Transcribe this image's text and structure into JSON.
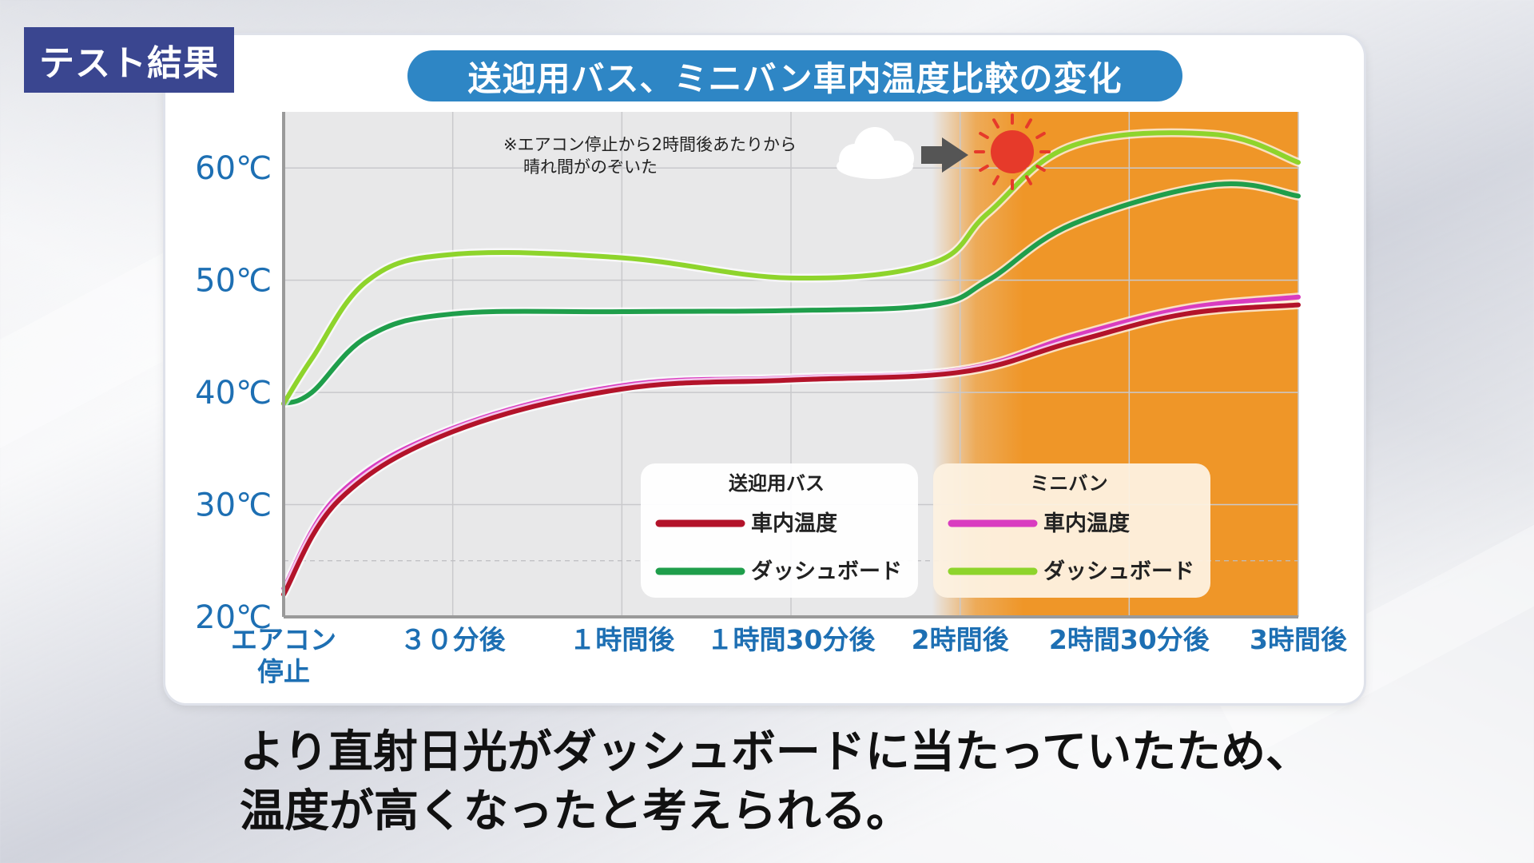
{
  "badge": {
    "label": "テスト結果"
  },
  "caption": {
    "line1": "より直射日光がダッシュボードに当たっていたため、",
    "line2": "温度が高くなったと考えられる。"
  },
  "colors": {
    "bus_cabin": "#b3132a",
    "bus_dash": "#1f9e4b",
    "van_cabin": "#d93cc0",
    "van_dash": "#8ed42c",
    "sunny": "#ef9628",
    "axis_label": "#1d6fb3"
  },
  "chart_data": {
    "type": "line",
    "title": "送迎用バス、ミニバン車内温度比較の変化",
    "categories": [
      "エアコン停止",
      "30分後",
      "1時間後",
      "1時間30分後",
      "2時間後",
      "2時間30分後",
      "3時間後"
    ],
    "x_labels": [
      [
        "エアコン",
        "停止"
      ],
      [
        "３０分後"
      ],
      [
        "１時間後"
      ],
      [
        "１時間30分後"
      ],
      [
        "2時間後"
      ],
      [
        "2時間30分後"
      ],
      [
        "3時間後"
      ]
    ],
    "x_minutes": [
      0,
      30,
      60,
      90,
      120,
      150,
      180
    ],
    "xlim": [
      0,
      180
    ],
    "ylim": [
      20,
      65
    ],
    "y_ticks": [
      20,
      30,
      40,
      50,
      60
    ],
    "y_tick_labels": [
      "20℃",
      "30℃",
      "40℃",
      "50℃",
      "60℃"
    ],
    "sunny_from_minute": 115,
    "annotation": {
      "line1": "※エアコン停止から2時間後あたりから",
      "line2": "晴れ間がのぞいた"
    },
    "legend": [
      {
        "group": "送迎用バス",
        "items": [
          "車内温度",
          "ダッシュボード"
        ]
      },
      {
        "group": "ミニバン",
        "items": [
          "車内温度",
          "ダッシュボード"
        ]
      }
    ],
    "series": [
      {
        "name": "送迎用バス ダッシュボード",
        "color_key": "bus_dash",
        "x": [
          0,
          5,
          15,
          30,
          60,
          90,
          115,
          125,
          140,
          165,
          180
        ],
        "values": [
          39,
          40,
          45,
          47,
          47.2,
          47.3,
          47.8,
          50,
          55,
          58.5,
          57.5
        ]
      },
      {
        "name": "ミニバン ダッシュボード",
        "color_key": "van_dash",
        "x": [
          0,
          5,
          15,
          30,
          60,
          90,
          115,
          125,
          140,
          165,
          180
        ],
        "values": [
          39,
          43,
          50,
          52.3,
          52,
          50.2,
          51.5,
          56,
          62,
          63,
          60.5
        ]
      },
      {
        "name": "ミニバン 車内温度",
        "color_key": "van_cabin",
        "x": [
          0,
          10,
          30,
          60,
          90,
          120,
          140,
          160,
          180
        ],
        "values": [
          22.5,
          31,
          36.8,
          40.6,
          41.3,
          42,
          45,
          47.5,
          48.5
        ]
      },
      {
        "name": "送迎用バス 車内温度",
        "color_key": "bus_cabin",
        "x": [
          0,
          10,
          30,
          60,
          90,
          120,
          140,
          160,
          180
        ],
        "values": [
          22,
          30.5,
          36.5,
          40.3,
          41.1,
          41.8,
          44.5,
          47,
          47.8
        ]
      }
    ]
  }
}
